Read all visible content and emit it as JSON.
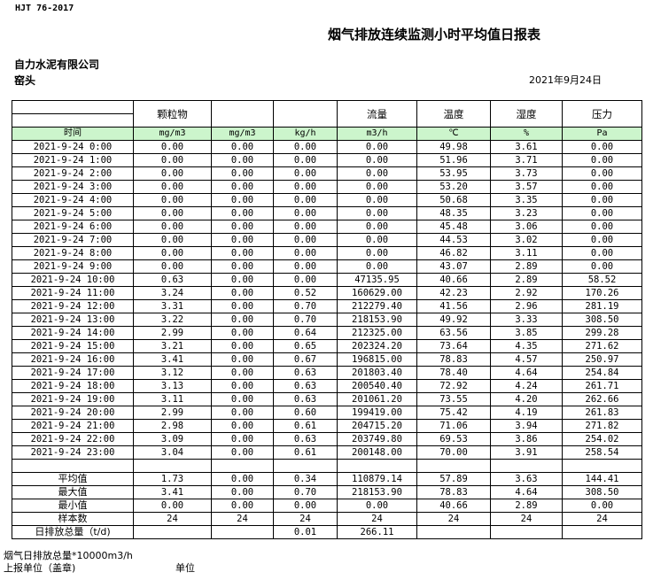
{
  "standard": "HJT  76-2017",
  "title": "烟气排放连续监测小时平均值日报表",
  "company": "自力水泥有限公司",
  "location": "窑头",
  "date": "2021年9月24日",
  "table": {
    "headers": [
      "",
      "颗粒物",
      "",
      "",
      "流量",
      "温度",
      "湿度",
      "压力"
    ],
    "units": [
      "时间",
      "mg/m3",
      "mg/m3",
      "kg/h",
      "m3/h",
      "℃",
      "%",
      "Pa"
    ],
    "rows": [
      [
        "2021-9-24 0:00",
        "0.00",
        "0.00",
        "0.00",
        "0.00",
        "49.98",
        "3.61",
        "0.00"
      ],
      [
        "2021-9-24 1:00",
        "0.00",
        "0.00",
        "0.00",
        "0.00",
        "51.96",
        "3.71",
        "0.00"
      ],
      [
        "2021-9-24 2:00",
        "0.00",
        "0.00",
        "0.00",
        "0.00",
        "53.95",
        "3.73",
        "0.00"
      ],
      [
        "2021-9-24 3:00",
        "0.00",
        "0.00",
        "0.00",
        "0.00",
        "53.20",
        "3.57",
        "0.00"
      ],
      [
        "2021-9-24 4:00",
        "0.00",
        "0.00",
        "0.00",
        "0.00",
        "50.68",
        "3.35",
        "0.00"
      ],
      [
        "2021-9-24 5:00",
        "0.00",
        "0.00",
        "0.00",
        "0.00",
        "48.35",
        "3.23",
        "0.00"
      ],
      [
        "2021-9-24 6:00",
        "0.00",
        "0.00",
        "0.00",
        "0.00",
        "45.48",
        "3.06",
        "0.00"
      ],
      [
        "2021-9-24 7:00",
        "0.00",
        "0.00",
        "0.00",
        "0.00",
        "44.53",
        "3.02",
        "0.00"
      ],
      [
        "2021-9-24 8:00",
        "0.00",
        "0.00",
        "0.00",
        "0.00",
        "46.82",
        "3.11",
        "0.00"
      ],
      [
        "2021-9-24 9:00",
        "0.00",
        "0.00",
        "0.00",
        "0.00",
        "43.07",
        "2.89",
        "0.00"
      ],
      [
        "2021-9-24 10:00",
        "0.63",
        "0.00",
        "0.00",
        "47135.95",
        "40.66",
        "2.89",
        "58.52"
      ],
      [
        "2021-9-24 11:00",
        "3.24",
        "0.00",
        "0.52",
        "160629.00",
        "42.23",
        "2.92",
        "170.26"
      ],
      [
        "2021-9-24 12:00",
        "3.31",
        "0.00",
        "0.70",
        "212279.40",
        "41.56",
        "2.96",
        "281.19"
      ],
      [
        "2021-9-24 13:00",
        "3.22",
        "0.00",
        "0.70",
        "218153.90",
        "49.92",
        "3.33",
        "308.50"
      ],
      [
        "2021-9-24 14:00",
        "2.99",
        "0.00",
        "0.64",
        "212325.00",
        "63.56",
        "3.85",
        "299.28"
      ],
      [
        "2021-9-24 15:00",
        "3.21",
        "0.00",
        "0.65",
        "202324.20",
        "73.64",
        "4.35",
        "271.62"
      ],
      [
        "2021-9-24 16:00",
        "3.41",
        "0.00",
        "0.67",
        "196815.00",
        "78.83",
        "4.57",
        "250.97"
      ],
      [
        "2021-9-24 17:00",
        "3.12",
        "0.00",
        "0.63",
        "201803.40",
        "78.40",
        "4.64",
        "254.84"
      ],
      [
        "2021-9-24 18:00",
        "3.13",
        "0.00",
        "0.63",
        "200540.40",
        "72.92",
        "4.24",
        "261.71"
      ],
      [
        "2021-9-24 19:00",
        "3.11",
        "0.00",
        "0.63",
        "201061.20",
        "73.55",
        "4.20",
        "262.66"
      ],
      [
        "2021-9-24 20:00",
        "2.99",
        "0.00",
        "0.60",
        "199419.00",
        "75.42",
        "4.19",
        "261.83"
      ],
      [
        "2021-9-24 21:00",
        "2.98",
        "0.00",
        "0.61",
        "204715.20",
        "71.06",
        "3.94",
        "271.82"
      ],
      [
        "2021-9-24 22:00",
        "3.09",
        "0.00",
        "0.63",
        "203749.80",
        "69.53",
        "3.86",
        "254.02"
      ],
      [
        "2021-9-24 23:00",
        "3.04",
        "0.00",
        "0.61",
        "200148.00",
        "70.00",
        "3.91",
        "258.54"
      ]
    ],
    "summary": [
      [
        "平均值",
        "1.73",
        "0.00",
        "0.34",
        "110879.14",
        "57.89",
        "3.63",
        "144.41"
      ],
      [
        "最大值",
        "3.41",
        "0.00",
        "0.70",
        "218153.90",
        "78.83",
        "4.64",
        "308.50"
      ],
      [
        "最小值",
        "0.00",
        "0.00",
        "0.00",
        "0.00",
        "40.66",
        "2.89",
        "0.00"
      ],
      [
        "样本数",
        "24",
        "24",
        "24",
        "24",
        "24",
        "24",
        "24"
      ],
      [
        "日排放总量（t/d)",
        "",
        "",
        "0.01",
        "266.11",
        "",
        "",
        ""
      ]
    ],
    "unit_row_color": "#ccf5cc"
  },
  "footer": {
    "flue_total": "烟气日排放总量*10000m3/h",
    "report_unit": "上报单位（盖章)",
    "unit": "单位"
  }
}
